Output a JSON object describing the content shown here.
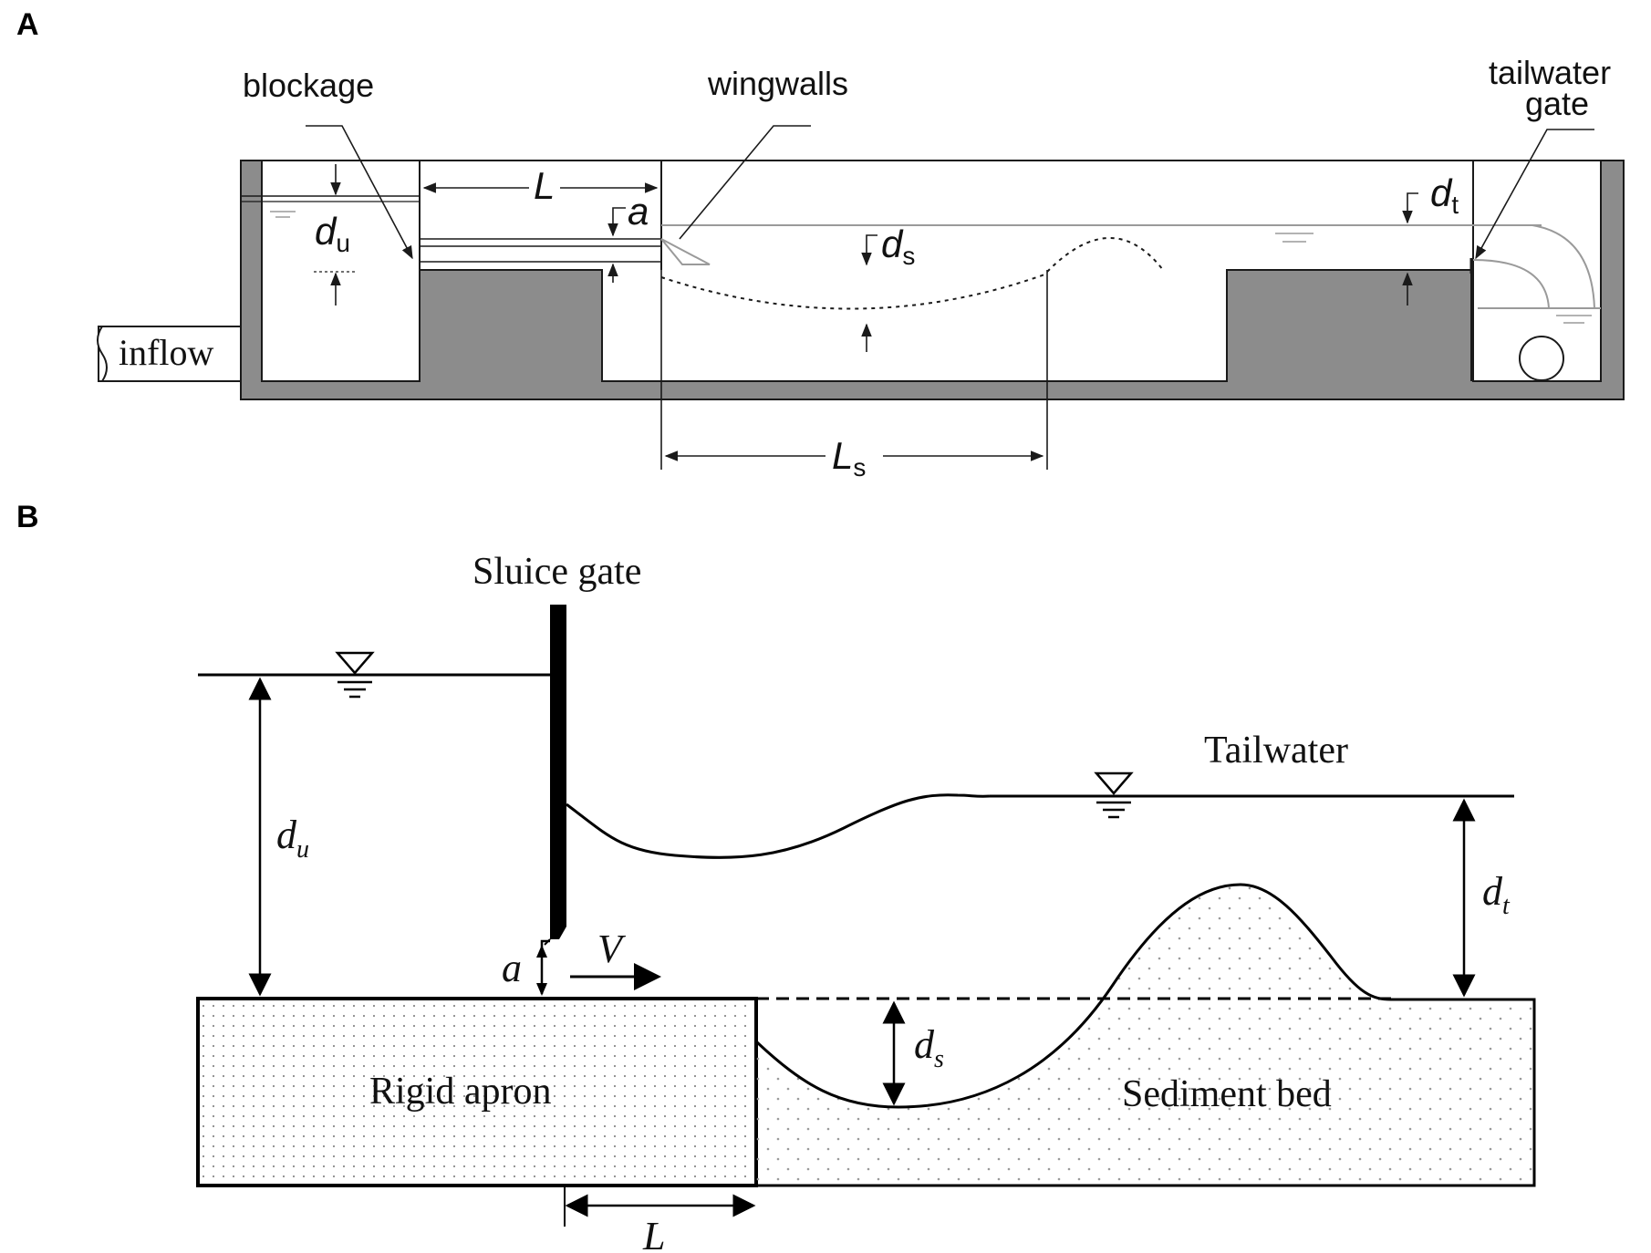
{
  "panel_a": {
    "letter": "A",
    "labels": {
      "blockage": "blockage",
      "wingwalls": "wingwalls",
      "tailwater_gate_line1": "tailwater",
      "tailwater_gate_line2": "gate",
      "inflow": "inflow"
    },
    "symbols": {
      "du_main": "d",
      "du_sub": "u",
      "L": "L",
      "a": "a",
      "ds_main": "d",
      "ds_sub": "s",
      "dt_main": "d",
      "dt_sub": "t",
      "Ls_main": "L",
      "Ls_sub": "s"
    },
    "colors": {
      "wall_fill": "#8c8c8c",
      "line": "#1a1a1a",
      "water_line": "#9a9a9a"
    }
  },
  "panel_b": {
    "letter": "B",
    "labels": {
      "sluice_gate": "Sluice gate",
      "tailwater": "Tailwater",
      "rigid_apron": "Rigid apron",
      "sediment_bed": "Sediment bed"
    },
    "symbols": {
      "du_main": "d",
      "du_sub": "u",
      "dt_main": "d",
      "dt_sub": "t",
      "ds_main": "d",
      "ds_sub": "s",
      "a": "a",
      "V": "V",
      "L": "L"
    },
    "colors": {
      "line": "#000000",
      "dot": "#9a9a9a"
    }
  }
}
